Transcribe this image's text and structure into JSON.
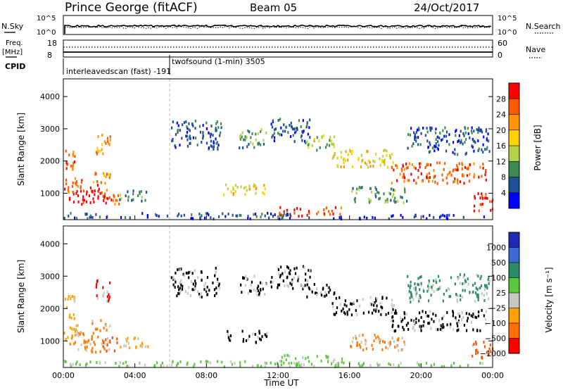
{
  "header": {
    "station": "Prince George (fitACF)",
    "beam": "Beam 05",
    "date": "24/Oct/2017"
  },
  "top_panels": {
    "nsky_label": "N.Sky",
    "nsky_ticks": [
      "10^5",
      "10^0"
    ],
    "nsearch_label": "N.Search",
    "nsearch_ticks": [
      "10^5",
      "10^0"
    ],
    "freq_label_1": "Freq.",
    "freq_label_2": "[MHz]",
    "freq_ticks": [
      "18",
      "8"
    ],
    "nave_label": "Nave",
    "nave_ticks": [
      "60",
      "0"
    ],
    "cpid_label": "CPID",
    "cpid_1_text": "interleavedscan (fast) -191",
    "cpid_2_text": "twofsound (1-min) 3505"
  },
  "chart_data": [
    {
      "type": "heatmap",
      "quantity": "Power",
      "ylabel": "Slant Range [km]",
      "xlabel": "",
      "ylim": [
        180,
        4550
      ],
      "yticks": [
        "4000",
        "3000",
        "2000",
        "1000"
      ],
      "xlim_hours": [
        0,
        24
      ],
      "xticks": [
        "00:00",
        "04:00",
        "08:00",
        "12:00",
        "16:00",
        "20:00",
        "00:00"
      ],
      "colorbar_label": "Power [dB]",
      "colorbar_ticks": [
        "28",
        "24",
        "20",
        "16",
        "12",
        "8",
        "4"
      ],
      "colorbar_colors": [
        "#ff0000",
        "#ff5a00",
        "#ff9600",
        "#ffd200",
        "#b4d24b",
        "#3c8c50",
        "#1e5096",
        "#0000ff"
      ]
    },
    {
      "type": "heatmap",
      "quantity": "Velocity",
      "ylabel": "Slant Range [km]",
      "xlabel": "Time UT",
      "ylim": [
        180,
        4550
      ],
      "yticks": [
        "4000",
        "3000",
        "2000",
        "1000"
      ],
      "xlim_hours": [
        0,
        24
      ],
      "xticks": [
        "00:00",
        "04:00",
        "08:00",
        "12:00",
        "16:00",
        "20:00",
        "00:00"
      ],
      "colorbar_label": "Velocity [m s⁻¹]",
      "colorbar_ticks": [
        "1000",
        "500",
        "100",
        "25",
        "−25",
        "−100",
        "−500",
        "−1000"
      ],
      "colorbar_colors": [
        "#1e2ab4",
        "#3a6ad2",
        "#2a8c64",
        "#5ac83c",
        "#c8c8c0",
        "#ffa000",
        "#ff6e00",
        "#ff0000"
      ]
    }
  ],
  "power_colors": [
    "#0000ff",
    "#1e5096",
    "#3c8c50",
    "#b4d24b",
    "#ffd200",
    "#ff9600",
    "#ff5a00",
    "#ff0000"
  ],
  "velocity_gray": "#c8c8c0",
  "velocity_colors": [
    "#ffa000",
    "#ff7a00",
    "#ff5000",
    "#5ac83c",
    "#2a8c64",
    "#3a6ad2",
    "#ff0000"
  ],
  "scatter_regions": [
    {
      "t": [
        0.0,
        0.6
      ],
      "r": [
        1600,
        2400
      ],
      "p": 6,
      "v": 0
    },
    {
      "t": [
        0.3,
        2.3
      ],
      "r": [
        650,
        1250
      ],
      "p": 7,
      "v": 1
    },
    {
      "t": [
        2.0,
        3.1
      ],
      "r": [
        650,
        1100
      ],
      "p": 6,
      "v": 2
    },
    {
      "t": [
        1.4,
        2.6
      ],
      "r": [
        1300,
        1650
      ],
      "p": 5,
      "v": 1
    },
    {
      "t": [
        0.0,
        1.0
      ],
      "r": [
        1000,
        1500
      ],
      "p": 6,
      "v": 0
    },
    {
      "t": [
        1.8,
        2.6
      ],
      "r": [
        2200,
        2900
      ],
      "p": 5,
      "v": 6
    },
    {
      "t": [
        3.1,
        4.7
      ],
      "r": [
        750,
        1100
      ],
      "p": 2,
      "v": 0
    },
    {
      "t": [
        6.0,
        8.8
      ],
      "r": [
        2350,
        3250
      ],
      "p": 1,
      "v": 7
    },
    {
      "t": [
        8.9,
        11.4
      ],
      "r": [
        950,
        1300
      ],
      "p": 4,
      "v": 7
    },
    {
      "t": [
        9.8,
        11.4
      ],
      "r": [
        2400,
        3000
      ],
      "p": 2,
      "v": 7
    },
    {
      "t": [
        11.5,
        13.8
      ],
      "r": [
        2600,
        3300
      ],
      "p": 1,
      "v": 7
    },
    {
      "t": [
        13.5,
        15.2
      ],
      "r": [
        2300,
        2800
      ],
      "p": 3,
      "v": 7
    },
    {
      "t": [
        15.0,
        18.5
      ],
      "r": [
        1800,
        2350
      ],
      "p": 4,
      "v": 7
    },
    {
      "t": [
        18.3,
        23.6
      ],
      "r": [
        1300,
        1950
      ],
      "p": 6,
      "v": 7
    },
    {
      "t": [
        22.8,
        24.0
      ],
      "r": [
        450,
        1000
      ],
      "p": 7,
      "v": 2
    },
    {
      "t": [
        12.0,
        13.8
      ],
      "r": [
        280,
        560
      ],
      "p": 7,
      "v": 3
    },
    {
      "t": [
        14.1,
        15.6
      ],
      "r": [
        280,
        560
      ],
      "p": 6,
      "v": 3
    },
    {
      "t": [
        0.0,
        14.0
      ],
      "r": [
        200,
        380
      ],
      "p": 1,
      "v": 3
    },
    {
      "t": [
        15.0,
        23.5
      ],
      "r": [
        200,
        320
      ],
      "p": 0,
      "v": 3
    },
    {
      "t": [
        16.0,
        19.2
      ],
      "r": [
        700,
        1200
      ],
      "p": 2,
      "v": 1
    },
    {
      "t": [
        19.2,
        23.8
      ],
      "r": [
        2200,
        3050
      ],
      "p": 1,
      "v": 4
    }
  ]
}
